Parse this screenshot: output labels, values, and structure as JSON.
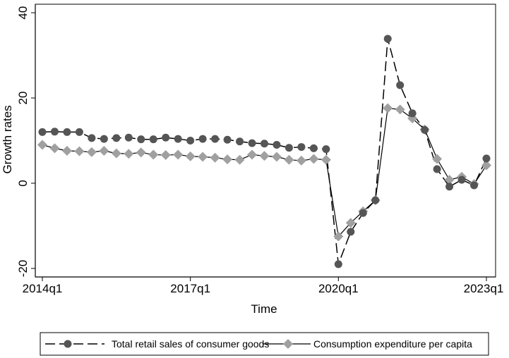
{
  "chart_data": {
    "type": "line",
    "title": "",
    "xlabel": "Time",
    "ylabel": "Growth rates",
    "ylim": [
      -22,
      42
    ],
    "y_ticks": [
      "-20",
      "0",
      "20",
      "40"
    ],
    "y_tick_values": [
      -20,
      0,
      20,
      40
    ],
    "x_tick_labels": [
      "2014q1",
      "2017q1",
      "2020q1",
      "2023q1"
    ],
    "x_tick_quarter_index": [
      0,
      12,
      24,
      36
    ],
    "x": [
      "2014q1",
      "2014q2",
      "2014q3",
      "2014q4",
      "2015q1",
      "2015q2",
      "2015q3",
      "2015q4",
      "2016q1",
      "2016q2",
      "2016q3",
      "2016q4",
      "2017q1",
      "2017q2",
      "2017q3",
      "2017q4",
      "2018q1",
      "2018q2",
      "2018q3",
      "2018q4",
      "2019q1",
      "2019q2",
      "2019q3",
      "2019q4",
      "2020q1",
      "2020q2",
      "2020q3",
      "2020q4",
      "2021q1",
      "2021q2",
      "2021q3",
      "2021q4",
      "2022q1",
      "2022q2",
      "2022q3",
      "2022q4",
      "2023q1"
    ],
    "grid": false,
    "legend_position": "bottom",
    "colors": {
      "series1": "#555555",
      "series2": "#a0a0a0",
      "axis": "#000000"
    },
    "series": [
      {
        "name": "Total retail sales of consumer goods",
        "line_style": "dashed",
        "marker": "circle",
        "values": [
          12.0,
          12.1,
          12.0,
          12.0,
          10.6,
          10.4,
          10.6,
          10.7,
          10.3,
          10.3,
          10.7,
          10.4,
          10.0,
          10.4,
          10.4,
          10.2,
          9.8,
          9.4,
          9.3,
          9.0,
          8.3,
          8.5,
          8.2,
          8.0,
          -19.0,
          -11.4,
          -7.0,
          -4.0,
          33.9,
          23.0,
          16.4,
          12.5,
          3.3,
          -0.8,
          0.8,
          -0.5,
          5.8
        ]
      },
      {
        "name": "Consumption expenditure per capita",
        "line_style": "solid",
        "marker": "diamond",
        "values": [
          9.0,
          8.2,
          7.6,
          7.5,
          7.3,
          7.6,
          7.0,
          6.9,
          7.2,
          6.7,
          6.6,
          6.7,
          6.3,
          6.2,
          6.0,
          5.6,
          5.5,
          6.7,
          6.4,
          6.2,
          5.5,
          5.3,
          5.7,
          5.5,
          -12.5,
          -9.3,
          -6.6,
          -4.0,
          17.6,
          17.3,
          15.2,
          12.6,
          5.7,
          0.8,
          1.5,
          -0.2,
          4.2
        ]
      }
    ]
  }
}
